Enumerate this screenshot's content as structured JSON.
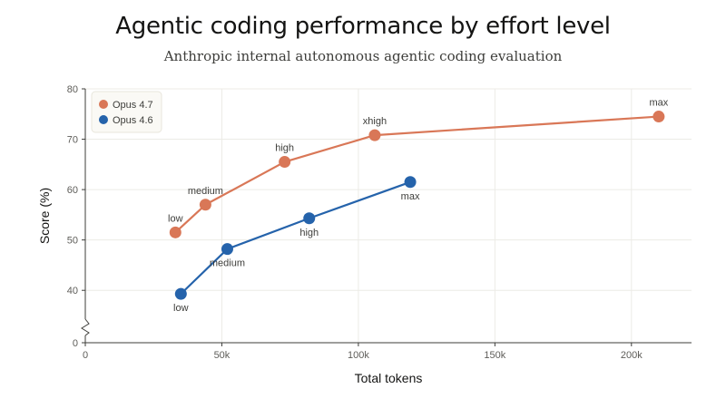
{
  "chart_data": {
    "type": "line",
    "title": "Agentic coding performance by effort level",
    "subtitle": "Anthropic internal autonomous agentic coding evaluation",
    "xlabel": "Total tokens",
    "ylabel": "Score (%)",
    "xlim": [
      0,
      222000
    ],
    "ylim": [
      0,
      80
    ],
    "y_axis_break": [
      0,
      35
    ],
    "x_ticks": [
      0,
      50000,
      100000,
      150000,
      200000
    ],
    "x_tick_labels": [
      "0",
      "50k",
      "100k",
      "150k",
      "200k"
    ],
    "y_ticks": [
      0,
      40,
      50,
      60,
      70,
      80
    ],
    "y_tick_labels": [
      "0",
      "40",
      "50",
      "60",
      "70",
      "80"
    ],
    "grid": true,
    "legend_position": "top-left",
    "series": [
      {
        "name": "Opus 4.7",
        "color": "#d97757",
        "label_placement": "above",
        "points": [
          {
            "label": "low",
            "x": 33000,
            "y": 51.5
          },
          {
            "label": "medium",
            "x": 44000,
            "y": 57
          },
          {
            "label": "high",
            "x": 73000,
            "y": 65.5
          },
          {
            "label": "xhigh",
            "x": 106000,
            "y": 70.8
          },
          {
            "label": "max",
            "x": 210000,
            "y": 74.5
          }
        ]
      },
      {
        "name": "Opus 4.6",
        "color": "#2563ab",
        "label_placement": "below",
        "points": [
          {
            "label": "low",
            "x": 35000,
            "y": 39.3
          },
          {
            "label": "medium",
            "x": 52000,
            "y": 48.2
          },
          {
            "label": "high",
            "x": 82000,
            "y": 54.3
          },
          {
            "label": "max",
            "x": 119000,
            "y": 61.5
          }
        ]
      }
    ]
  }
}
